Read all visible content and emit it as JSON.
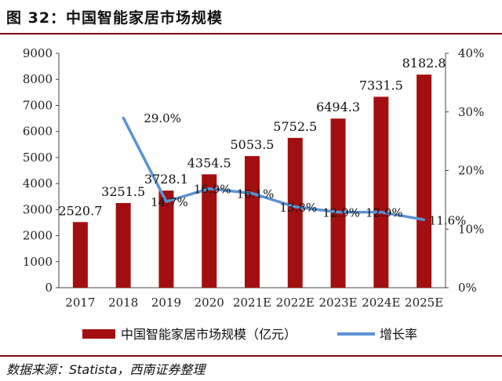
{
  "figure": {
    "title": "图 32：中国智能家居市场规模",
    "source": "数据来源：Statista，西南证券整理"
  },
  "colors": {
    "bar": "#a30f10",
    "line": "#5b93d3",
    "accent": "#7a0b0b"
  },
  "chart_data": {
    "type": "bar",
    "categories": [
      "2017",
      "2018",
      "2019",
      "2020",
      "2021E",
      "2022E",
      "2023E",
      "2024E",
      "2025E"
    ],
    "series": [
      {
        "name": "中国智能家居市场规模（亿元）",
        "type": "bar",
        "axis": "left",
        "values": [
          2520.7,
          3251.5,
          3728.1,
          4354.5,
          5053.5,
          5752.5,
          6494.3,
          7331.5,
          8182.8
        ],
        "labels": [
          "2520.7",
          "3251.5",
          "3728.1",
          "4354.5",
          "5053.5",
          "5752.5",
          "6494.3",
          "7331.5",
          "8182.8"
        ]
      },
      {
        "name": "增长率",
        "type": "line",
        "axis": "right",
        "values": [
          null,
          29.0,
          14.7,
          16.9,
          16.1,
          13.8,
          12.9,
          12.9,
          11.6
        ],
        "labels": [
          "",
          "29.0%",
          "14.7%",
          "16.9%",
          "16.1%",
          "13.8%",
          "12.9%",
          "12.9%",
          "11.6%"
        ]
      }
    ],
    "yleft": {
      "min": 0,
      "max": 9000,
      "ticks": [
        "0",
        "1000",
        "2000",
        "3000",
        "4000",
        "5000",
        "6000",
        "7000",
        "8000",
        "9000"
      ]
    },
    "yright": {
      "min": 0,
      "max": 40,
      "ticks": [
        "0%",
        "10%",
        "20%",
        "30%",
        "40%"
      ]
    },
    "legend": "bottom",
    "grid": false
  }
}
